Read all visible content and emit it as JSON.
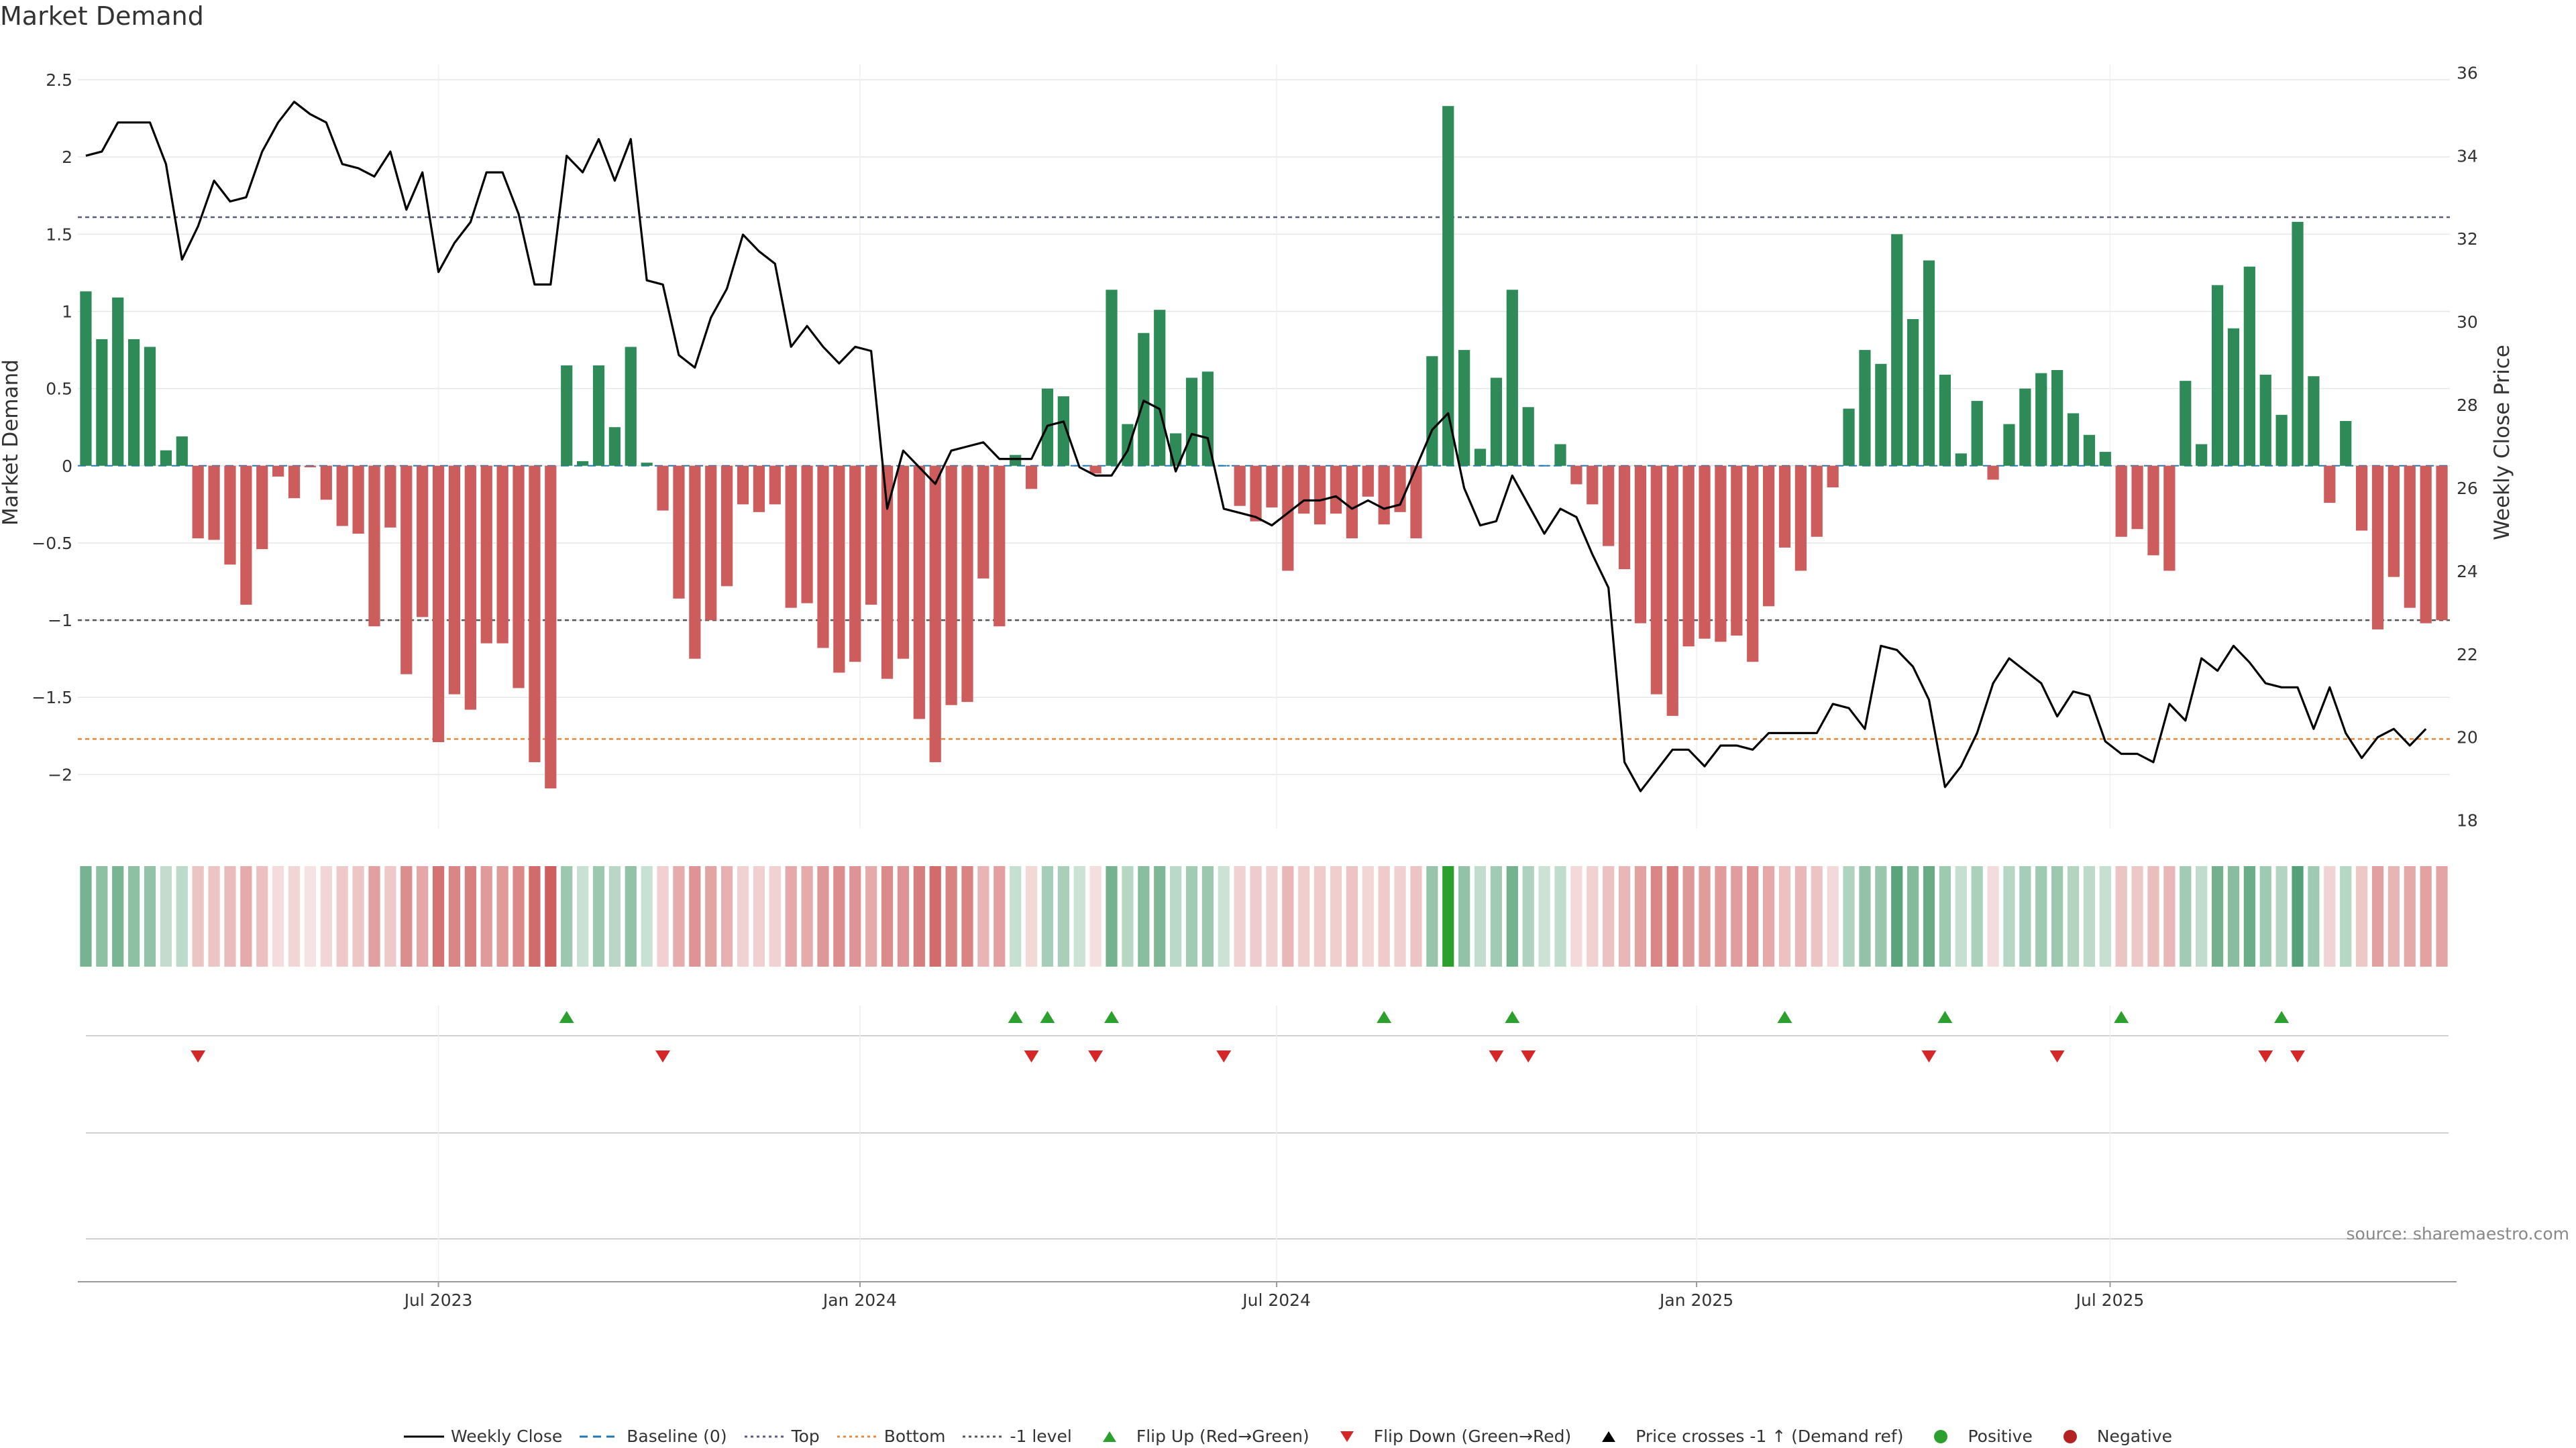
{
  "chart_data": {
    "type": "bar+line",
    "title": "Market Demand",
    "source": "source: sharemaestro.com",
    "ylabel_left": "Market Demand",
    "ylabel_right": "Weekly Close Price",
    "ylim_left": [
      -2.35,
      2.6
    ],
    "ylim_right": [
      17.8,
      36.2
    ],
    "yticks_left": [
      2.5,
      2,
      1.5,
      1,
      0.5,
      0,
      -0.5,
      -1,
      -1.5,
      -2
    ],
    "yticks_left_labels": [
      "2.5",
      "2",
      "1.5",
      "1",
      "0.5",
      "0",
      "−0.5",
      "−1",
      "−1.5",
      "−2"
    ],
    "yticks_right": [
      36,
      34,
      32,
      30,
      28,
      26,
      24,
      22,
      20,
      18
    ],
    "x_ticks": [
      {
        "label": "Jul 2023",
        "index": 22
      },
      {
        "label": "Jan 2024",
        "index": 48.3
      },
      {
        "label": "Jul 2024",
        "index": 74.3
      },
      {
        "label": "Jan 2025",
        "index": 100.5
      },
      {
        "label": "Jul 2025",
        "index": 126.3
      }
    ],
    "reference_lines": {
      "top": 1.61,
      "bottom": -1.77,
      "minus_one": -1.0,
      "baseline": 0
    },
    "demand": [
      1.13,
      0.82,
      1.09,
      0.82,
      0.77,
      0.1,
      0.19,
      -0.47,
      -0.48,
      -0.64,
      -0.9,
      -0.54,
      -0.07,
      -0.21,
      -0.01,
      -0.22,
      -0.39,
      -0.44,
      -1.04,
      -0.4,
      -1.35,
      -0.98,
      -1.79,
      -1.48,
      -1.58,
      -1.15,
      -1.15,
      -1.44,
      -1.92,
      -2.09,
      0.65,
      0.03,
      0.65,
      0.25,
      0.77,
      0.02,
      -0.29,
      -0.86,
      -1.25,
      -1.0,
      -0.78,
      -0.25,
      -0.3,
      -0.25,
      -0.92,
      -0.89,
      -1.18,
      -1.34,
      -1.27,
      -0.9,
      -1.38,
      -1.25,
      -1.64,
      -1.92,
      -1.55,
      -1.53,
      -0.73,
      -1.04,
      0.07,
      -0.15,
      0.5,
      0.45,
      0.0,
      -0.05,
      1.14,
      0.27,
      0.86,
      1.01,
      0.21,
      0.57,
      0.61,
      0.0,
      -0.26,
      -0.36,
      -0.27,
      -0.68,
      -0.31,
      -0.38,
      -0.31,
      -0.47,
      -0.2,
      -0.38,
      -0.3,
      -0.47,
      0.71,
      2.33,
      0.75,
      0.11,
      0.57,
      1.14,
      0.38,
      0.0,
      0.14,
      -0.12,
      -0.25,
      -0.52,
      -0.67,
      -1.02,
      -1.48,
      -1.62,
      -1.17,
      -1.12,
      -1.14,
      -1.1,
      -1.27,
      -0.91,
      -0.53,
      -0.68,
      -0.46,
      -0.14,
      0.37,
      0.75,
      0.66,
      1.5,
      0.95,
      1.33,
      0.59,
      0.08,
      0.42,
      -0.09,
      0.27,
      0.5,
      0.6,
      0.62,
      0.34,
      0.2,
      0.09,
      -0.46,
      -0.41,
      -0.58,
      -0.68,
      0.55,
      0.14,
      1.17,
      0.89,
      1.29,
      0.59,
      0.33,
      1.58,
      0.58,
      -0.24,
      0.29,
      -0.42,
      -1.06,
      -0.72,
      -0.92,
      -1.02,
      -1.0
    ],
    "close": [
      34.0,
      34.1,
      34.8,
      34.8,
      34.8,
      33.8,
      31.5,
      32.3,
      33.4,
      32.9,
      33.0,
      34.1,
      34.8,
      35.3,
      35.0,
      34.8,
      33.8,
      33.7,
      33.5,
      34.1,
      32.7,
      33.6,
      31.2,
      31.9,
      32.4,
      33.6,
      33.6,
      32.6,
      30.9,
      30.9,
      34.0,
      33.6,
      34.4,
      33.4,
      34.4,
      31.0,
      30.9,
      29.2,
      28.9,
      30.1,
      30.8,
      32.1,
      31.7,
      31.4,
      29.4,
      29.9,
      29.4,
      29.0,
      29.4,
      29.3,
      25.5,
      26.9,
      26.5,
      26.1,
      26.9,
      27.0,
      27.1,
      26.7,
      26.7,
      26.7,
      27.5,
      27.6,
      26.5,
      26.3,
      26.3,
      26.9,
      28.1,
      27.9,
      26.4,
      27.3,
      27.2,
      25.5,
      25.4,
      25.3,
      25.1,
      25.4,
      25.7,
      25.7,
      25.8,
      25.5,
      25.7,
      25.5,
      25.6,
      26.5,
      27.4,
      27.8,
      26.0,
      25.1,
      25.2,
      26.3,
      25.6,
      24.9,
      25.5,
      25.3,
      24.4,
      23.6,
      19.4,
      18.7,
      19.2,
      19.7,
      19.7,
      19.3,
      19.8,
      19.8,
      19.7,
      20.1,
      20.1,
      20.1,
      20.1,
      20.8,
      20.7,
      20.2,
      22.2,
      22.1,
      21.7,
      20.9,
      18.8,
      19.3,
      20.1,
      21.3,
      21.9,
      21.6,
      21.3,
      20.5,
      21.1,
      21.0,
      19.9,
      19.6,
      19.6,
      19.4,
      20.8,
      20.4,
      21.9,
      21.6,
      22.2,
      21.8,
      21.3,
      21.2,
      21.2,
      20.2,
      21.2,
      20.1,
      19.5,
      20.0,
      20.2,
      19.8,
      20.2
    ],
    "flip_up_index": [
      30,
      58,
      60,
      64,
      81,
      89,
      106,
      116,
      127,
      137
    ],
    "flip_down_index": [
      7,
      36,
      59,
      63,
      71,
      88,
      90,
      115,
      123,
      136,
      138
    ],
    "legend": [
      {
        "label": "Weekly Close",
        "kind": "line",
        "color": "#000000"
      },
      {
        "label": "Baseline (0)",
        "kind": "dash",
        "color": "#1f77b4"
      },
      {
        "label": "Top",
        "kind": "dot",
        "color": "#5a5a7a"
      },
      {
        "label": "Bottom",
        "kind": "dot",
        "color": "#e8883a"
      },
      {
        "label": "-1 level",
        "kind": "dot",
        "color": "#555555"
      },
      {
        "label": "Flip Up (Red→Green)",
        "kind": "tri-up",
        "color": "#2ca02c"
      },
      {
        "label": "Flip Down (Green→Red)",
        "kind": "tri-down",
        "color": "#d62728"
      },
      {
        "label": "Price crosses -1 ↑ (Demand ref)",
        "kind": "tri-up",
        "color": "#000000"
      },
      {
        "label": "Positive",
        "kind": "dot-marker",
        "color": "#2ca02c"
      },
      {
        "label": "Negative",
        "kind": "dot-marker",
        "color": "#b22222"
      }
    ],
    "colors": {
      "positive": "#2e8b57",
      "negative": "#cd5c5c",
      "line": "#000000",
      "grid": "#e6e6e6"
    }
  }
}
